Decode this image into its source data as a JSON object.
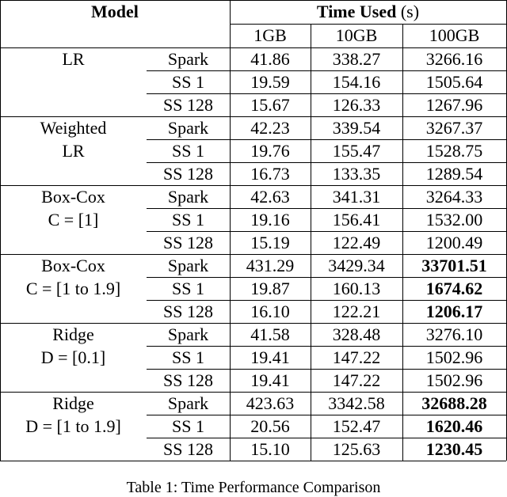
{
  "header": {
    "model": "Model",
    "time_used": "Time Used",
    "unit": "(s)",
    "sizes": [
      "1GB",
      "10GB",
      "100GB"
    ]
  },
  "groups": [
    {
      "model_lines": [
        "LR"
      ],
      "rows": [
        {
          "method": "Spark",
          "values": [
            "41.86",
            "338.27",
            "3266.16"
          ]
        },
        {
          "method": "SS 1",
          "values": [
            "19.59",
            "154.16",
            "1505.64"
          ]
        },
        {
          "method": "SS 128",
          "values": [
            "15.67",
            "126.33",
            "1267.96"
          ]
        }
      ]
    },
    {
      "model_lines": [
        "Weighted",
        "LR"
      ],
      "rows": [
        {
          "method": "Spark",
          "values": [
            "42.23",
            "339.54",
            "3267.37"
          ]
        },
        {
          "method": "SS 1",
          "values": [
            "19.76",
            "155.47",
            "1528.75"
          ]
        },
        {
          "method": "SS 128",
          "values": [
            "16.73",
            "133.35",
            "1289.54"
          ]
        }
      ]
    },
    {
      "model_lines": [
        "Box-Cox",
        "C = [1]"
      ],
      "rows": [
        {
          "method": "Spark",
          "values": [
            "42.63",
            "341.31",
            "3264.33"
          ]
        },
        {
          "method": "SS 1",
          "values": [
            "19.16",
            "156.41",
            "1532.00"
          ]
        },
        {
          "method": "SS 128",
          "values": [
            "15.19",
            "122.49",
            "1200.49"
          ]
        }
      ]
    },
    {
      "model_lines": [
        "Box-Cox",
        "C = [1 to 1.9]"
      ],
      "rows": [
        {
          "method": "Spark",
          "values": [
            "431.29",
            "3429.34",
            "33701.51"
          ],
          "bold_columns": [
            2
          ]
        },
        {
          "method": "SS 1",
          "values": [
            "19.87",
            "160.13",
            "1674.62"
          ],
          "bold_columns": [
            2
          ]
        },
        {
          "method": "SS 128",
          "values": [
            "16.10",
            "122.21",
            "1206.17"
          ],
          "bold_columns": [
            2
          ]
        }
      ]
    },
    {
      "model_lines": [
        "Ridge",
        "D = [0.1]"
      ],
      "rows": [
        {
          "method": "Spark",
          "values": [
            "41.58",
            "328.48",
            "3276.10"
          ]
        },
        {
          "method": "SS 1",
          "values": [
            "19.41",
            "147.22",
            "1502.96"
          ]
        },
        {
          "method": "SS 128",
          "values": [
            "19.41",
            "147.22",
            "1502.96"
          ]
        }
      ]
    },
    {
      "model_lines": [
        "Ridge",
        "D = [1 to 1.9]"
      ],
      "rows": [
        {
          "method": "Spark",
          "values": [
            "423.63",
            "3342.58",
            "32688.28"
          ],
          "bold_columns": [
            2
          ]
        },
        {
          "method": "SS 1",
          "values": [
            "20.56",
            "152.47",
            "1620.46"
          ],
          "bold_columns": [
            2
          ]
        },
        {
          "method": "SS 128",
          "values": [
            "15.10",
            "125.63",
            "1230.45"
          ],
          "bold_columns": [
            2
          ]
        }
      ]
    }
  ],
  "caption": "Table 1: Time Performance Comparison"
}
